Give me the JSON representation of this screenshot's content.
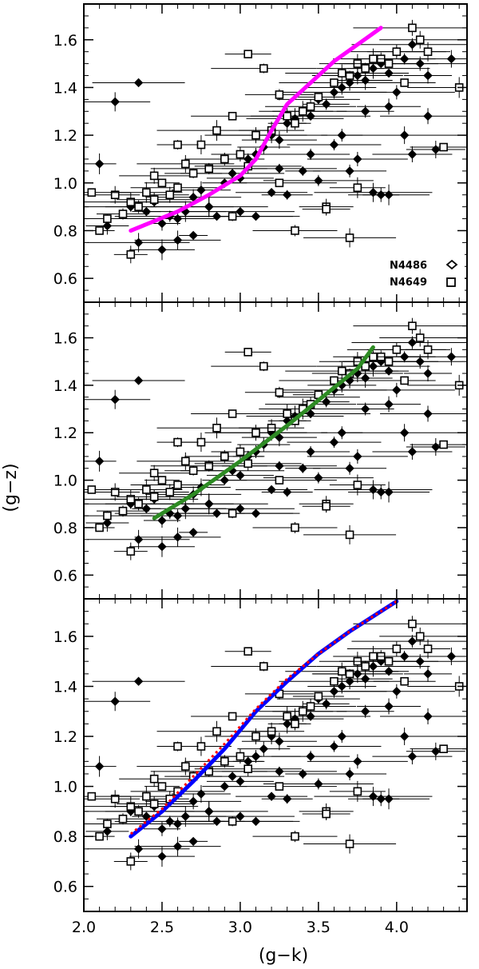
{
  "chart_data": {
    "type": "scatter",
    "xlabel": "(g−k)",
    "ylabel": "(g−z)",
    "xlim": [
      2.0,
      4.45
    ],
    "ylim": [
      0.5,
      1.75
    ],
    "x_ticks": [
      "2.0",
      "2.5",
      "3.0",
      "3.5",
      "4.0"
    ],
    "x_tick_values": [
      2.0,
      2.5,
      3.0,
      3.5,
      4.0
    ],
    "y_ticks": [
      "0.6",
      "0.8",
      "1.0",
      "1.2",
      "1.4",
      "1.6"
    ],
    "y_tick_values": [
      0.6,
      0.8,
      1.0,
      1.2,
      1.4,
      1.6
    ],
    "legend": [
      {
        "label": "N4486",
        "marker": "diamond"
      },
      {
        "label": "N4649",
        "marker": "square"
      }
    ],
    "legend_position": "bottom-right of top panel",
    "panels": [
      {
        "name": "top",
        "curves": [
          {
            "color": "#ff00ff",
            "style": "solid",
            "x": [
              2.3,
              2.6,
              2.8,
              3.0,
              3.1,
              3.2,
              3.3,
              3.45,
              3.6,
              3.75,
              3.9
            ],
            "y": [
              0.8,
              0.88,
              0.95,
              1.03,
              1.1,
              1.22,
              1.33,
              1.42,
              1.51,
              1.58,
              1.65
            ]
          }
        ]
      },
      {
        "name": "middle",
        "curves": [
          {
            "color": "#2e8b24",
            "style": "solid",
            "x": [
              2.45,
              2.7,
              3.0,
              3.3,
              3.6,
              3.75,
              3.85
            ],
            "y": [
              0.84,
              0.94,
              1.08,
              1.23,
              1.39,
              1.47,
              1.56
            ]
          }
        ]
      },
      {
        "name": "bottom",
        "curves": [
          {
            "color": "#0000ff",
            "style": "solid",
            "x": [
              2.3,
              2.5,
              2.7,
              2.9,
              3.1,
              3.3,
              3.5,
              3.7,
              3.9,
              4.0
            ],
            "y": [
              0.8,
              0.9,
              1.02,
              1.15,
              1.3,
              1.42,
              1.53,
              1.62,
              1.7,
              1.74
            ]
          },
          {
            "color": "#ff0000",
            "style": "dotted",
            "x": [
              2.3,
              2.5,
              2.7,
              2.9,
              3.1,
              3.3,
              3.5,
              3.7,
              3.9,
              4.0
            ],
            "y": [
              0.81,
              0.91,
              1.04,
              1.17,
              1.31,
              1.43,
              1.53,
              1.62,
              1.7,
              1.74
            ]
          }
        ]
      }
    ],
    "series": [
      {
        "name": "N4486",
        "marker": "diamond",
        "x": [
          2.4,
          2.45,
          2.3,
          2.55,
          2.6,
          2.5,
          2.7,
          2.75,
          2.8,
          2.65,
          2.9,
          2.95,
          3.0,
          3.05,
          3.1,
          3.15,
          3.2,
          3.25,
          3.3,
          3.35,
          3.4,
          3.45,
          3.5,
          3.55,
          3.6,
          3.65,
          3.7,
          3.75,
          3.8,
          3.85,
          3.9,
          3.95,
          4.0,
          4.05,
          4.1,
          4.15,
          4.2,
          4.35,
          2.2,
          2.1,
          2.35,
          2.85,
          3.25,
          3.45,
          3.65,
          3.75,
          3.95,
          4.05,
          2.6,
          2.8,
          3.0,
          3.2,
          3.4,
          3.6,
          3.8,
          4.0,
          4.1,
          2.15,
          2.35,
          2.5,
          2.7,
          3.1,
          3.3,
          3.5,
          3.7,
          3.9,
          4.2,
          4.25,
          3.85,
          3.95
        ],
        "y": [
          0.88,
          0.92,
          0.9,
          0.86,
          0.85,
          0.83,
          0.94,
          0.97,
          0.9,
          0.88,
          1.0,
          1.04,
          1.02,
          1.1,
          1.12,
          1.15,
          1.2,
          1.18,
          1.25,
          1.27,
          1.3,
          1.28,
          1.35,
          1.33,
          1.38,
          1.4,
          1.42,
          1.45,
          1.43,
          1.48,
          1.5,
          1.46,
          1.55,
          1.52,
          1.58,
          1.5,
          1.45,
          1.52,
          1.34,
          1.08,
          1.42,
          0.86,
          1.06,
          1.12,
          1.2,
          1.1,
          1.32,
          1.2,
          0.76,
          0.9,
          0.88,
          0.96,
          1.05,
          1.16,
          1.3,
          1.38,
          1.12,
          0.82,
          0.75,
          0.72,
          0.78,
          0.86,
          0.95,
          1.01,
          1.05,
          0.95,
          1.28,
          1.14,
          0.96,
          0.95
        ]
      },
      {
        "name": "N4649",
        "marker": "square",
        "x": [
          2.2,
          2.3,
          2.4,
          2.5,
          2.6,
          2.7,
          2.8,
          2.9,
          3.0,
          3.1,
          3.2,
          3.3,
          3.4,
          3.5,
          3.6,
          3.7,
          3.8,
          3.9,
          4.0,
          4.1,
          4.15,
          4.2,
          4.4,
          4.3,
          2.1,
          2.15,
          2.25,
          2.35,
          2.45,
          2.55,
          2.65,
          2.75,
          2.85,
          2.95,
          3.05,
          3.15,
          3.25,
          3.35,
          3.45,
          3.55,
          3.65,
          3.75,
          3.85,
          3.95,
          4.05,
          2.95,
          3.35,
          3.55,
          3.05,
          2.45,
          2.3,
          3.7,
          3.75,
          3.25,
          2.05,
          2.6
        ],
        "y": [
          0.95,
          0.92,
          0.96,
          1.0,
          0.98,
          1.04,
          1.06,
          1.1,
          1.12,
          1.2,
          1.22,
          1.28,
          1.3,
          1.36,
          1.42,
          1.45,
          1.48,
          1.52,
          1.55,
          1.65,
          1.6,
          1.55,
          1.4,
          1.15,
          0.8,
          0.85,
          0.87,
          0.9,
          0.93,
          0.95,
          1.08,
          1.16,
          1.22,
          1.28,
          1.54,
          1.48,
          1.37,
          1.25,
          1.32,
          0.9,
          1.46,
          1.5,
          1.52,
          1.5,
          1.42,
          0.86,
          0.8,
          0.89,
          1.07,
          1.03,
          0.7,
          0.77,
          0.98,
          1.0,
          0.96,
          1.16
        ]
      }
    ]
  }
}
